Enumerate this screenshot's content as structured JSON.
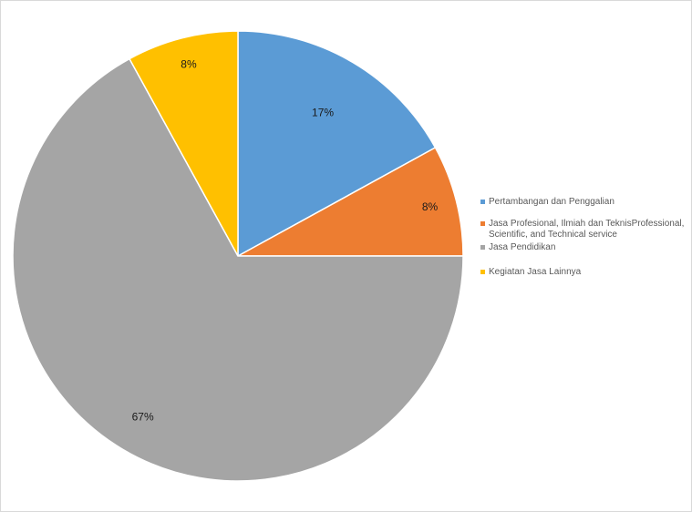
{
  "chart_data": {
    "type": "pie",
    "title": "",
    "categories": [
      "Pertambangan dan Penggalian",
      "Jasa Profesional, Ilmiah dan TeknisProfessional, Scientific, and Technical service",
      "Jasa Pendidikan",
      "Kegiatan Jasa Lainnya"
    ],
    "values": [
      17,
      8,
      67,
      8
    ],
    "data_labels": [
      "17%",
      "8%",
      "67%",
      "8%"
    ],
    "colors": [
      "#5b9bd5",
      "#ed7d31",
      "#a5a5a5",
      "#ffc000"
    ],
    "legend_position": "right",
    "start_angle_deg": 0,
    "direction": "clockwise"
  }
}
